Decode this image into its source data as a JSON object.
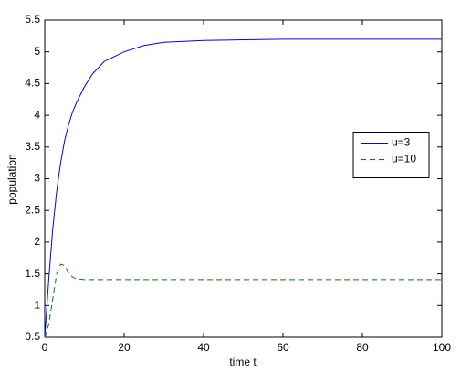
{
  "chart_data": {
    "type": "line",
    "x_label": "time t",
    "y_label": "population",
    "x": [
      0,
      1,
      2,
      3,
      4,
      5,
      6,
      7,
      8,
      10,
      12,
      15,
      20,
      25,
      30,
      40,
      50,
      60,
      80,
      100
    ],
    "series": [
      {
        "name": "u=3",
        "color": "#0000ff",
        "dash": "solid",
        "values": [
          0.5,
          1.4,
          2.2,
          2.8,
          3.25,
          3.6,
          3.85,
          4.05,
          4.2,
          4.45,
          4.65,
          4.85,
          5.0,
          5.1,
          5.15,
          5.18,
          5.19,
          5.2,
          5.2,
          5.2
        ]
      },
      {
        "name": "u=10",
        "color": "#008000",
        "dash": "dashed",
        "values": [
          0.5,
          0.7,
          1.1,
          1.5,
          1.65,
          1.63,
          1.52,
          1.45,
          1.42,
          1.41,
          1.41,
          1.41,
          1.41,
          1.41,
          1.41,
          1.41,
          1.41,
          1.41,
          1.41,
          1.41
        ]
      }
    ],
    "xlim": [
      0,
      100
    ],
    "xticks": [
      0,
      20,
      40,
      60,
      80,
      100
    ],
    "ylim": [
      0.5,
      5.5
    ],
    "yticks": [
      0.5,
      1,
      1.5,
      2,
      2.5,
      3,
      3.5,
      4,
      4.5,
      5,
      5.5
    ],
    "grid": false,
    "legend": "east"
  }
}
